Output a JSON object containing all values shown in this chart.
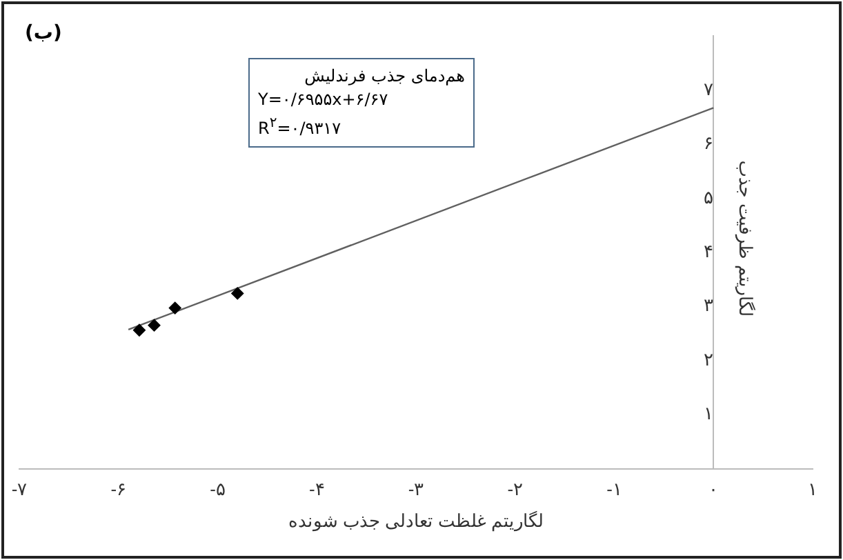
{
  "chart_data": {
    "type": "scatter",
    "xlabel": "لگاریتم غلظت تعادلی جذب شونده",
    "ylabel": "لگاریتم ظرفیت جذب",
    "annotations": [
      "(ب)",
      "هم‌دمای جذب فرندلیش",
      "Y=۰/۶۹۵۵x+۶/۶۷",
      "R$^{۲}$=۰/۹۳۱۷"
    ],
    "series": [
      {
        "color": "#000000",
        "marker": "diamond",
        "x": [
          -5.79,
          -5.64,
          -5.43,
          -4.8
        ],
        "values": [
          2.56,
          2.65,
          2.97,
          3.24
        ]
      },
      {
        "type": "line",
        "color": "#606060",
        "marker": "none",
        "x": [
          -5.9,
          0
        ],
        "values": [
          2.57,
          6.67
        ]
      }
    ],
    "xlim": [
      -7,
      1
    ],
    "ylim": [
      0,
      8
    ],
    "xticks": [
      {
        "value": -7,
        "label": "-۷"
      },
      {
        "value": -6,
        "label": "-۶"
      },
      {
        "value": -5,
        "label": "-۵"
      },
      {
        "value": -4,
        "label": "-۴"
      },
      {
        "value": -3,
        "label": "-۳"
      },
      {
        "value": -2,
        "label": "-۲"
      },
      {
        "value": -1,
        "label": "-۱"
      },
      {
        "value": 0,
        "label": "۰"
      },
      {
        "value": 1,
        "label": "۱"
      }
    ],
    "yticks": [
      {
        "value": 1,
        "label": "۱"
      },
      {
        "value": 2,
        "label": "۲"
      },
      {
        "value": 3,
        "label": "۳"
      },
      {
        "value": 4,
        "label": "۴"
      },
      {
        "value": 5,
        "label": "۵"
      },
      {
        "value": 6,
        "label": "۶"
      },
      {
        "value": 7,
        "label": "۷"
      }
    ],
    "grid": false,
    "legend": false
  }
}
